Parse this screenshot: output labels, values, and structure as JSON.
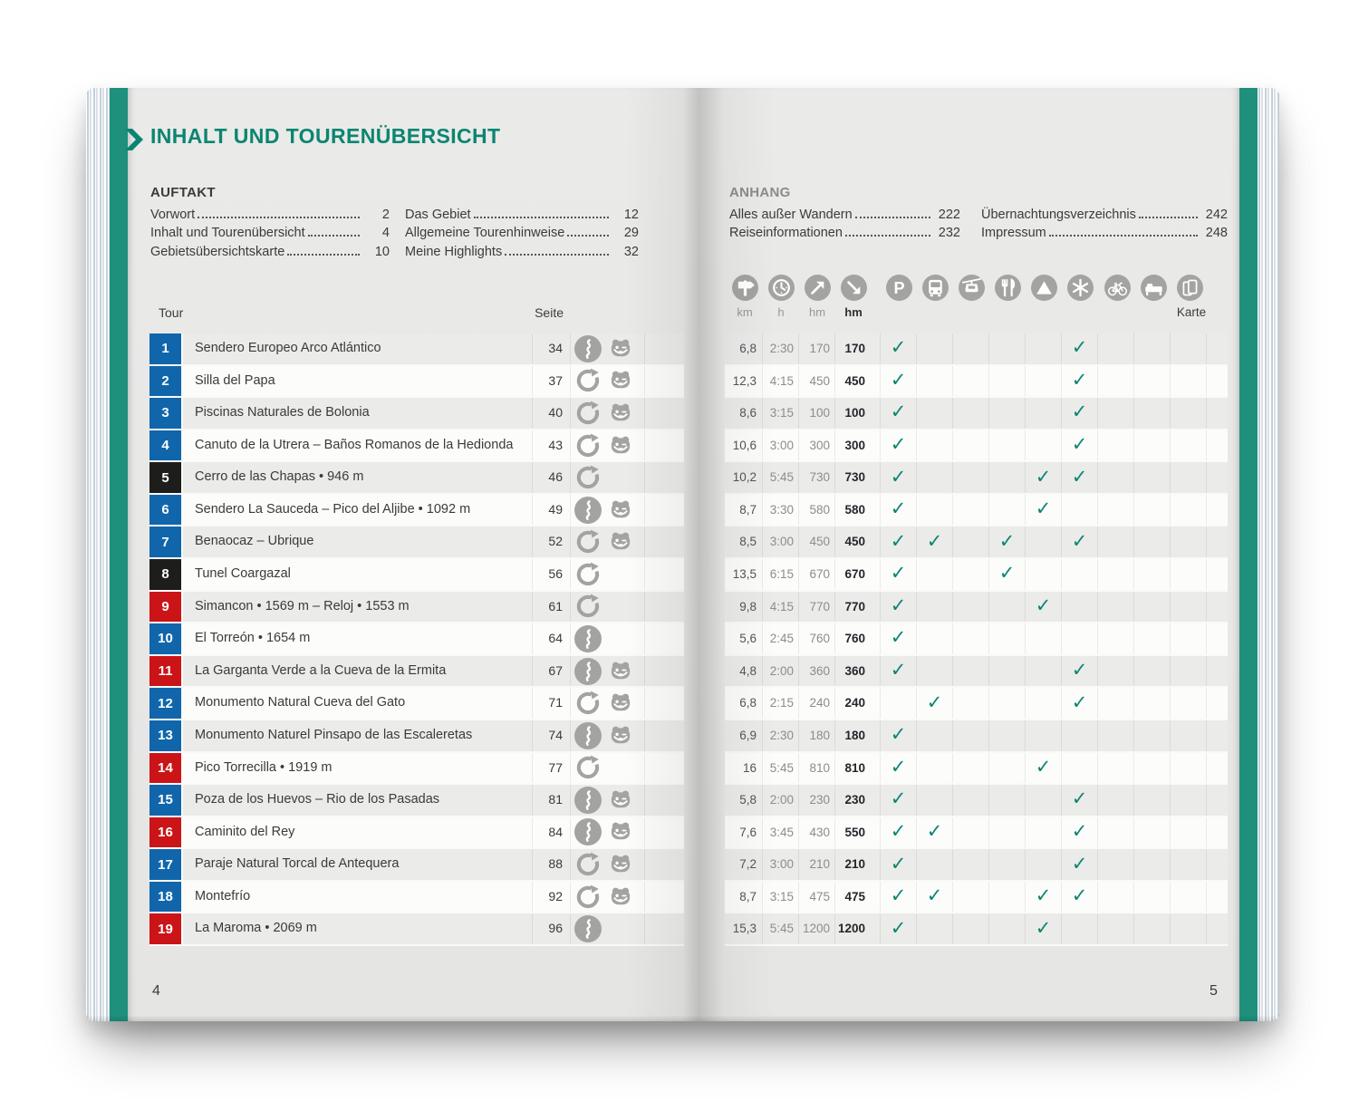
{
  "book": {
    "left_page": {
      "title": "INHALT UND TOURENÜBERSICHT",
      "section": {
        "heading": "AUFTAKT",
        "columns": [
          [
            {
              "label": "Vorwort",
              "page": "2"
            },
            {
              "label": "Inhalt und Tourenübersicht",
              "page": "4"
            },
            {
              "label": "Gebietsübersichtskarte",
              "page": "10"
            }
          ],
          [
            {
              "label": "Das Gebiet",
              "page": "12"
            },
            {
              "label": "Allgemeine Tourenhinweise",
              "page": "29"
            },
            {
              "label": "Meine Highlights",
              "page": "32"
            }
          ]
        ]
      },
      "table_header": {
        "tour": "Tour",
        "seite": "Seite"
      },
      "page_number": "4"
    },
    "right_page": {
      "section": {
        "heading": "ANHANG",
        "columns": [
          [
            {
              "label": "Alles außer Wandern",
              "page": "222"
            },
            {
              "label": "Reiseinformationen",
              "page": "232"
            }
          ],
          [
            {
              "label": "Übernachtungsverzeichnis",
              "page": "242"
            },
            {
              "label": "Impressum",
              "page": "248"
            }
          ]
        ]
      },
      "measure_icons": [
        {
          "icon": "signpost-icon",
          "label": "km"
        },
        {
          "icon": "clock-icon",
          "label": "h"
        },
        {
          "icon": "ascent-arrow-icon",
          "label": "hm"
        },
        {
          "icon": "descent-arrow-icon",
          "label": "hm"
        }
      ],
      "facility_icons": [
        "parking-icon",
        "bus-icon",
        "cablecar-icon",
        "restaurant-icon",
        "peak-icon",
        "snowflake-icon",
        "bicycle-icon",
        "bed-icon",
        "map-icon"
      ],
      "map_label": "Karte",
      "page_number": "5"
    },
    "tours": [
      {
        "nr": "1",
        "tile": "blue",
        "title": "Sendero Europeo Arco Atlántico",
        "page": "34",
        "route": "oneway",
        "family": true,
        "km": "6,8",
        "h": "2:30",
        "hm_up": "170",
        "hm_down": "170",
        "checks": [
          "parking",
          "snowflake"
        ]
      },
      {
        "nr": "2",
        "tile": "blue",
        "title": "Silla del Papa",
        "page": "37",
        "route": "circular",
        "family": true,
        "km": "12,3",
        "h": "4:15",
        "hm_up": "450",
        "hm_down": "450",
        "checks": [
          "parking",
          "snowflake"
        ]
      },
      {
        "nr": "3",
        "tile": "blue",
        "title": "Piscinas Naturales de Bolonia",
        "page": "40",
        "route": "circular",
        "family": true,
        "km": "8,6",
        "h": "3:15",
        "hm_up": "100",
        "hm_down": "100",
        "checks": [
          "parking",
          "snowflake"
        ]
      },
      {
        "nr": "4",
        "tile": "blue",
        "title": "Canuto de la Utrera – Baños Romanos de la Hedionda",
        "page": "43",
        "route": "circular",
        "family": true,
        "km": "10,6",
        "h": "3:00",
        "hm_up": "300",
        "hm_down": "300",
        "checks": [
          "parking",
          "snowflake"
        ]
      },
      {
        "nr": "5",
        "tile": "black",
        "title": "Cerro de las Chapas • 946 m",
        "page": "46",
        "route": "circular",
        "family": false,
        "km": "10,2",
        "h": "5:45",
        "hm_up": "730",
        "hm_down": "730",
        "checks": [
          "parking",
          "peak",
          "snowflake"
        ]
      },
      {
        "nr": "6",
        "tile": "blue",
        "title": "Sendero La Sauceda – Pico del Aljibe • 1092 m",
        "page": "49",
        "route": "oneway",
        "family": true,
        "km": "8,7",
        "h": "3:30",
        "hm_up": "580",
        "hm_down": "580",
        "checks": [
          "parking",
          "peak"
        ]
      },
      {
        "nr": "7",
        "tile": "blue",
        "title": "Benaocaz – Ubrique",
        "page": "52",
        "route": "circular",
        "family": true,
        "km": "8,5",
        "h": "3:00",
        "hm_up": "450",
        "hm_down": "450",
        "checks": [
          "parking",
          "bus",
          "restaurant",
          "snowflake"
        ]
      },
      {
        "nr": "8",
        "tile": "black",
        "title": "Tunel Coargazal",
        "page": "56",
        "route": "circular",
        "family": false,
        "km": "13,5",
        "h": "6:15",
        "hm_up": "670",
        "hm_down": "670",
        "checks": [
          "parking",
          "restaurant"
        ]
      },
      {
        "nr": "9",
        "tile": "red",
        "title": "Simancon • 1569 m – Reloj • 1553 m",
        "page": "61",
        "route": "circular",
        "family": false,
        "km": "9,8",
        "h": "4:15",
        "hm_up": "770",
        "hm_down": "770",
        "checks": [
          "parking",
          "peak"
        ]
      },
      {
        "nr": "10",
        "tile": "blue",
        "title": "El Torreón • 1654 m",
        "page": "64",
        "route": "oneway",
        "family": false,
        "km": "5,6",
        "h": "2:45",
        "hm_up": "760",
        "hm_down": "760",
        "checks": [
          "parking"
        ]
      },
      {
        "nr": "11",
        "tile": "red",
        "title": "La Garganta Verde a la Cueva de la Ermita",
        "page": "67",
        "route": "oneway",
        "family": true,
        "km": "4,8",
        "h": "2:00",
        "hm_up": "360",
        "hm_down": "360",
        "checks": [
          "parking",
          "snowflake"
        ]
      },
      {
        "nr": "12",
        "tile": "blue",
        "title": "Monumento Natural Cueva del Gato",
        "page": "71",
        "route": "circular",
        "family": true,
        "km": "6,8",
        "h": "2:15",
        "hm_up": "240",
        "hm_down": "240",
        "checks": [
          "bus",
          "snowflake"
        ]
      },
      {
        "nr": "13",
        "tile": "blue",
        "title": "Monumento Naturel Pinsapo de las Escaleretas",
        "page": "74",
        "route": "oneway",
        "family": true,
        "km": "6,9",
        "h": "2:30",
        "hm_up": "180",
        "hm_down": "180",
        "checks": [
          "parking"
        ]
      },
      {
        "nr": "14",
        "tile": "red",
        "title": "Pico Torrecilla • 1919 m",
        "page": "77",
        "route": "circular",
        "family": false,
        "km": "16",
        "h": "5:45",
        "hm_up": "810",
        "hm_down": "810",
        "checks": [
          "parking",
          "peak"
        ]
      },
      {
        "nr": "15",
        "tile": "blue",
        "title": "Poza de los Huevos – Rio de los Pasadas",
        "page": "81",
        "route": "oneway",
        "family": true,
        "km": "5,8",
        "h": "2:00",
        "hm_up": "230",
        "hm_down": "230",
        "checks": [
          "parking",
          "snowflake"
        ]
      },
      {
        "nr": "16",
        "tile": "red",
        "title": "Caminito del Rey",
        "page": "84",
        "route": "oneway",
        "family": true,
        "km": "7,6",
        "h": "3:45",
        "hm_up": "430",
        "hm_down": "550",
        "checks": [
          "parking",
          "bus",
          "snowflake"
        ]
      },
      {
        "nr": "17",
        "tile": "blue",
        "title": "Paraje Natural Torcal de Antequera",
        "page": "88",
        "route": "circular",
        "family": true,
        "km": "7,2",
        "h": "3:00",
        "hm_up": "210",
        "hm_down": "210",
        "checks": [
          "parking",
          "snowflake"
        ]
      },
      {
        "nr": "18",
        "tile": "blue",
        "title": "Montefrío",
        "page": "92",
        "route": "circular",
        "family": true,
        "km": "8,7",
        "h": "3:15",
        "hm_up": "475",
        "hm_down": "475",
        "checks": [
          "parking",
          "bus",
          "peak",
          "snowflake"
        ]
      },
      {
        "nr": "19",
        "tile": "red",
        "title": "La Maroma • 2069 m",
        "page": "96",
        "route": "oneway",
        "family": false,
        "km": "15,3",
        "h": "5:45",
        "hm_up": "1200",
        "hm_down": "1200",
        "checks": [
          "parking",
          "peak"
        ]
      }
    ]
  },
  "colors": {
    "accent": "#0b8571",
    "band": "#1e907c",
    "tile_blue": "#1166ab",
    "tile_black": "#1d1d1b",
    "tile_red": "#cb1417",
    "icon_gray": "#a3a3a2",
    "check": "#0b8571"
  }
}
